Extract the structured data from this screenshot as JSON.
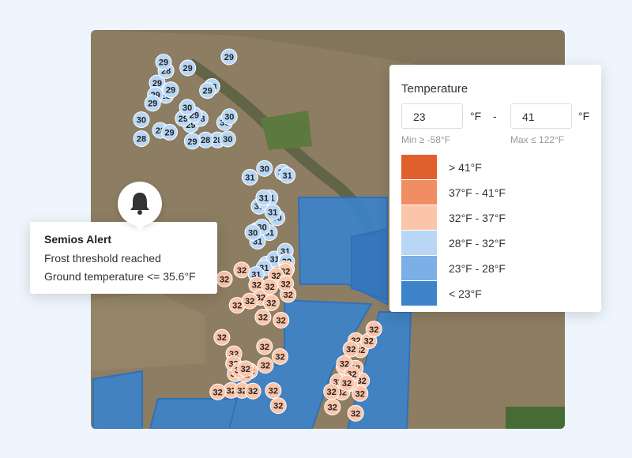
{
  "legend": {
    "title": "Temperature",
    "min_input": "23",
    "min_unit": "°F",
    "separator": "-",
    "max_input": "41",
    "max_unit": "°F",
    "min_hint": "Min ≥ -58°F",
    "max_hint": "Max ≤ 122°F",
    "items": [
      {
        "label": "> 41°F",
        "color": "#e15f2b"
      },
      {
        "label": "37°F - 41°F",
        "color": "#f08d62"
      },
      {
        "label": "32°F - 37°F",
        "color": "#fbc5aa"
      },
      {
        "label": "28°F - 32°F",
        "color": "#b9d7f5"
      },
      {
        "label": "23°F - 28°F",
        "color": "#7cafe5"
      },
      {
        "label": "< 23°F",
        "color": "#3c83c9"
      }
    ]
  },
  "alert": {
    "title": "Semios Alert",
    "lines": [
      "Frost threshold reached",
      "Ground temperature <= 35.6°F"
    ]
  },
  "map": {
    "clusters": [
      {
        "color": "#b9d7f5",
        "labels": [
          "29",
          "29",
          "28",
          "28",
          "29",
          "28",
          "28",
          "29",
          "30",
          "29",
          "28",
          "29",
          "28",
          "29",
          "30",
          "29",
          "29",
          "28",
          "28",
          "29",
          "30",
          "29",
          "30",
          "29",
          "28",
          "29",
          "30",
          "29"
        ]
      },
      {
        "color": "#b9d7f5",
        "labels": [
          "31",
          "31",
          "31",
          "30",
          "31",
          "31",
          "31",
          "30",
          "31",
          "31",
          "30",
          "31",
          "31",
          "31",
          "30",
          "31",
          "31",
          "30",
          "31",
          "31",
          "31",
          "30"
        ]
      },
      {
        "color": "#fbc5aa",
        "labels": [
          "32",
          "32",
          "32",
          "32",
          "32",
          "32",
          "32",
          "32",
          "32",
          "32",
          "32",
          "32",
          "32",
          "32",
          "32",
          "32",
          "32",
          "32",
          "32",
          "32",
          "32",
          "32",
          "32",
          "32",
          "32",
          "32",
          "32",
          "32",
          "32",
          "32",
          "32",
          "32"
        ]
      },
      {
        "color": "#fbc5aa",
        "labels": [
          "32",
          "32",
          "32",
          "32",
          "32",
          "32",
          "32",
          "32",
          "32",
          "32",
          "32",
          "32",
          "32",
          "32",
          "32",
          "32",
          "32",
          "32"
        ]
      }
    ]
  }
}
